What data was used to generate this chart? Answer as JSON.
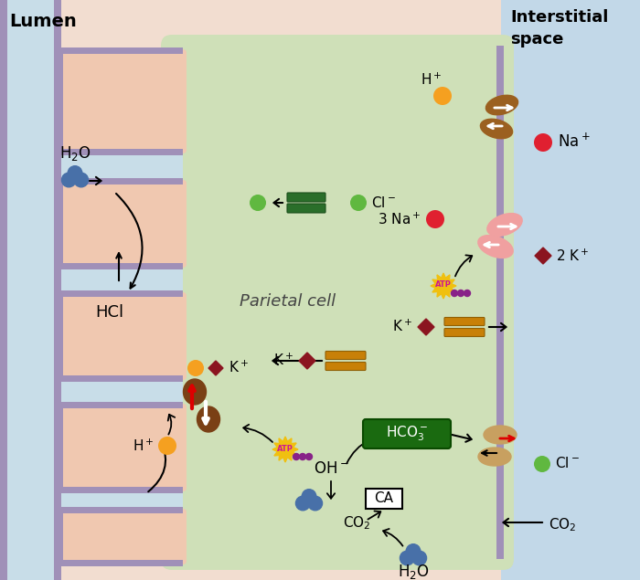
{
  "lumen_label": "Lumen",
  "interstitial_label": "Interstitial\nspace",
  "parietal_label": "Parietal cell",
  "bg_lumen": "#f2ddd0",
  "bg_interstitial": "#c2d8e8",
  "bg_cell": "#cfe0b8",
  "fold_fill": "#f0c8b0",
  "fold_lumen_fill": "#c8dde8",
  "mem_color": "#a090b8",
  "colors": {
    "orange": "#f5a020",
    "red": "#e02030",
    "green": "#60b840",
    "dark_red": "#8b1520",
    "brown": "#7a4015",
    "pink": "#f0a0a0",
    "green_ch": "#2a6e2a",
    "yellow_ch": "#c88008",
    "tan": "#c8a060",
    "blue": "#4870a8",
    "atp_y": "#f0c010",
    "atp_m": "#cc1890",
    "hco3_g": "#1a6a10"
  }
}
